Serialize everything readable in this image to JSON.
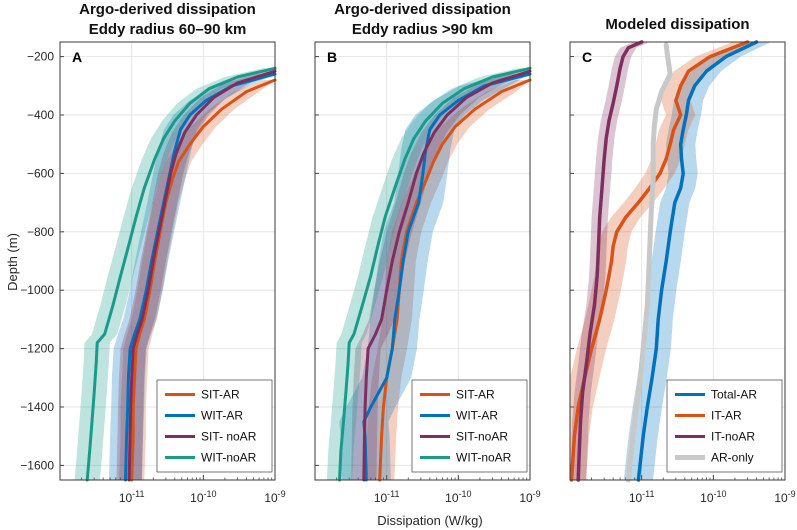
{
  "figure": {
    "ylabel": "Depth (m)",
    "xlabel": "Dissipation (W/kg)"
  },
  "chart_data": [
    {
      "type": "line",
      "panel": "A",
      "title": [
        "Argo-derived dissipation",
        "Eddy radius 60–90 km"
      ],
      "xscale": "log",
      "xlim": [
        1e-12,
        1e-09
      ],
      "ylim": [
        -1650,
        -150
      ],
      "xticks": [
        "10^-11",
        "10^-10",
        "10^-9"
      ],
      "yticks": [
        -200,
        -400,
        -600,
        -800,
        -1000,
        -1200,
        -1400,
        -1600
      ],
      "legend_position": "bottom-right",
      "series": [
        {
          "name": "SIT-AR",
          "color": "#D95319",
          "shade": 0.05,
          "depth": [
            -280,
            -320,
            -380,
            -440,
            -500,
            -560,
            -620,
            -700,
            -800,
            -900,
            -1000,
            -1100,
            -1150,
            -1200,
            -1300,
            -1400,
            -1500,
            -1650
          ],
          "x": [
            1e-09,
            4e-10,
            1.8e-10,
            1e-10,
            6.5e-11,
            4.5e-11,
            3.7e-11,
            3e-11,
            2.5e-11,
            2.1e-11,
            1.8e-11,
            1.5e-11,
            1.3e-11,
            1.15e-11,
            1.1e-11,
            1.05e-11,
            1.05e-11,
            1e-11
          ]
        },
        {
          "name": "WIT-AR",
          "color": "#0072BD",
          "shade": 0.07,
          "depth": [
            -260,
            -300,
            -350,
            -400,
            -450,
            -520,
            -600,
            -700,
            -800,
            -900,
            -1000,
            -1100,
            -1150,
            -1200,
            -1300,
            -1400,
            -1500,
            -1650
          ],
          "x": [
            1e-09,
            2.5e-10,
            1.1e-10,
            6.5e-11,
            4.8e-11,
            4e-11,
            3.4e-11,
            2.8e-11,
            2.3e-11,
            1.9e-11,
            1.6e-11,
            1.3e-11,
            1.1e-11,
            9.5e-12,
            9e-12,
            8.8e-12,
            8.5e-12,
            8.2e-12
          ]
        },
        {
          "name": "SIT- noAR",
          "color": "#7E2F5E",
          "shade": 0.05,
          "depth": [
            -250,
            -290,
            -340,
            -400,
            -460,
            -530,
            -600,
            -700,
            -800,
            -900,
            -1000,
            -1100,
            -1150,
            -1200,
            -1300,
            -1400,
            -1500,
            -1650
          ],
          "x": [
            1e-09,
            3e-10,
            1.4e-10,
            8e-11,
            5.5e-11,
            4.2e-11,
            3.5e-11,
            2.9e-11,
            2.4e-11,
            2e-11,
            1.7e-11,
            1.4e-11,
            1.2e-11,
            1.05e-11,
            1e-11,
            9.7e-12,
            9.5e-12,
            9.2e-12
          ]
        },
        {
          "name": "WIT-noAR",
          "color": "#1A9A8A",
          "shade": 0.05,
          "depth": [
            -240,
            -270,
            -310,
            -360,
            -420,
            -480,
            -550,
            -650,
            -750,
            -850,
            -950,
            -1050,
            -1150,
            -1180,
            -1250,
            -1350,
            -1450,
            -1550,
            -1650
          ],
          "x": [
            1e-09,
            3e-10,
            1.2e-10,
            6.5e-11,
            4e-11,
            2.8e-11,
            2.1e-11,
            1.5e-11,
            1.15e-11,
            9e-12,
            7e-12,
            5.5e-12,
            4.2e-12,
            3.3e-12,
            3.2e-12,
            3e-12,
            2.8e-12,
            2.6e-12,
            2.4e-12
          ]
        }
      ]
    },
    {
      "type": "line",
      "panel": "B",
      "title": [
        "Argo-derived dissipation",
        "Eddy radius >90 km"
      ],
      "xscale": "log",
      "xlim": [
        1e-12,
        1e-09
      ],
      "ylim": [
        -1650,
        -150
      ],
      "xticks": [
        "10^-11",
        "10^-10",
        "10^-9"
      ],
      "yticks": [
        -200,
        -400,
        -600,
        -800,
        -1000,
        -1200,
        -1400,
        -1600
      ],
      "legend_position": "bottom-right",
      "series": [
        {
          "name": "SIT-AR",
          "color": "#D95319",
          "shade": 0.06,
          "depth": [
            -280,
            -320,
            -380,
            -440,
            -500,
            -560,
            -620,
            -700,
            -800,
            -900,
            -1000,
            -1100,
            -1200,
            -1300,
            -1400,
            -1500,
            -1650
          ],
          "x": [
            1e-09,
            4e-10,
            1.7e-10,
            9e-11,
            6e-11,
            4.5e-11,
            3.6e-11,
            2.6e-11,
            1.9e-11,
            1.6e-11,
            1.5e-11,
            1.4e-11,
            1.2e-11,
            1e-11,
            9e-12,
            8.5e-12,
            8e-12
          ]
        },
        {
          "name": "WIT-AR",
          "color": "#0072BD",
          "shade": 0.12,
          "depth": [
            -260,
            -300,
            -350,
            -400,
            -450,
            -520,
            -600,
            -700,
            -800,
            -900,
            -1000,
            -1100,
            -1200,
            -1300,
            -1400,
            -1450,
            -1500,
            -1650
          ],
          "x": [
            1e-09,
            2.3e-10,
            1e-10,
            5.5e-11,
            4e-11,
            3.5e-11,
            3.2e-11,
            2.8e-11,
            2e-11,
            1.7e-11,
            1.5e-11,
            1.3e-11,
            1.2e-11,
            1e-11,
            6e-12,
            4.8e-12,
            5e-12,
            5.2e-12
          ]
        },
        {
          "name": "SIT-noAR",
          "color": "#7E2F5E",
          "shade": 0.05,
          "depth": [
            -250,
            -290,
            -340,
            -400,
            -460,
            -530,
            -600,
            -700,
            -800,
            -900,
            -1000,
            -1100,
            -1150,
            -1200,
            -1300,
            -1400,
            -1500,
            -1650
          ],
          "x": [
            1e-09,
            3e-10,
            1.3e-10,
            7e-11,
            4.6e-11,
            3.3e-11,
            2.6e-11,
            2e-11,
            1.5e-11,
            1.2e-11,
            1e-11,
            8.5e-12,
            7e-12,
            5.5e-12,
            5.2e-12,
            5e-12,
            4.9e-12,
            4.8e-12
          ]
        },
        {
          "name": "WIT-noAR",
          "color": "#1A9A8A",
          "shade": 0.05,
          "depth": [
            -240,
            -270,
            -310,
            -360,
            -420,
            -480,
            -550,
            -650,
            -750,
            -850,
            -950,
            -1050,
            -1150,
            -1180,
            -1250,
            -1350,
            -1450,
            -1550,
            -1650
          ],
          "x": [
            1e-09,
            3e-10,
            1.2e-10,
            6e-11,
            3.5e-11,
            2.4e-11,
            1.8e-11,
            1.3e-11,
            9.5e-12,
            7.5e-12,
            6e-12,
            4.6e-12,
            3.5e-12,
            3e-12,
            2.9e-12,
            2.7e-12,
            2.5e-12,
            2.3e-12,
            2.2e-12
          ]
        }
      ]
    },
    {
      "type": "line",
      "panel": "C",
      "title": [
        "Modeled dissipation"
      ],
      "xscale": "log",
      "xlim": [
        1e-12,
        1e-09
      ],
      "ylim": [
        -1650,
        -150
      ],
      "xticks": [
        "10^-11",
        "10^-10",
        "10^-9"
      ],
      "yticks": [
        -200,
        -400,
        -600,
        -800,
        -1000,
        -1200,
        -1400,
        -1600
      ],
      "legend_position": "bottom-right",
      "series": [
        {
          "name": "Total-AR",
          "color": "#0072BD",
          "shade": 0.06,
          "depth": [
            -150,
            -200,
            -250,
            -300,
            -350,
            -400,
            -450,
            -500,
            -550,
            -600,
            -650,
            -700,
            -800,
            -900,
            -1000,
            -1100,
            -1200,
            -1300,
            -1400,
            -1500,
            -1650
          ],
          "x": [
            4e-10,
            1.5e-10,
            8e-11,
            5.5e-11,
            4.5e-11,
            4.2e-11,
            3.8e-11,
            3.5e-11,
            3.6e-11,
            3.8e-11,
            3.5e-11,
            2.9e-11,
            2.5e-11,
            2.2e-11,
            1.9e-11,
            1.7e-11,
            1.6e-11,
            1.4e-11,
            1.2e-11,
            1.05e-11,
            9e-12
          ]
        },
        {
          "name": "IT-AR",
          "color": "#D95319",
          "shade": 0.06,
          "depth": [
            -150,
            -200,
            -250,
            -300,
            -350,
            -400,
            -450,
            -500,
            -550,
            -600,
            -650,
            -700,
            -750,
            -800,
            -850,
            -900,
            -950,
            -1000,
            -1100,
            -1200,
            -1300,
            -1400,
            -1500,
            -1650
          ],
          "x": [
            3e-10,
            9e-11,
            4.5e-11,
            3.5e-11,
            3e-11,
            3.5e-11,
            2.8e-11,
            2.5e-11,
            2.2e-11,
            1.8e-11,
            1.3e-11,
            9e-12,
            6e-12,
            4.5e-12,
            4e-12,
            3.8e-12,
            3.5e-12,
            3.2e-12,
            2.6e-12,
            2e-12,
            1.6e-12,
            1.3e-12,
            1.15e-12,
            1.05e-12
          ]
        },
        {
          "name": "IT-noAR",
          "color": "#7E2F5E",
          "shade": 0.03,
          "depth": [
            -150,
            -170,
            -200,
            -240,
            -300,
            -360,
            -420,
            -480,
            -550,
            -650,
            -750,
            -850,
            -950,
            -1050,
            -1150,
            -1250,
            -1350,
            -1450,
            -1550,
            -1650
          ],
          "x": [
            1e-11,
            6.5e-12,
            5.5e-12,
            5e-12,
            4.5e-12,
            4e-12,
            3.5e-12,
            3.2e-12,
            3e-12,
            2.8e-12,
            2.6e-12,
            2.5e-12,
            2.4e-12,
            2.2e-12,
            1.9e-12,
            1.7e-12,
            1.5e-12,
            1.4e-12,
            1.35e-12,
            1.3e-12
          ]
        },
        {
          "name": "AR-only",
          "color": "#C8C8C8",
          "shade": 0,
          "depth": [
            -160,
            -200,
            -260,
            -320,
            -380,
            -440,
            -500,
            -560,
            -620,
            -680,
            -750,
            -850,
            -950,
            -1050,
            -1150,
            -1250,
            -1350,
            -1450,
            -1550,
            -1650
          ],
          "x": [
            2.2e-11,
            2.3e-11,
            2.5e-11,
            1.9e-11,
            1.6e-11,
            1.5e-11,
            1.45e-11,
            1.45e-11,
            1.45e-11,
            1.4e-11,
            1.35e-11,
            1.3e-11,
            1.25e-11,
            1.2e-11,
            1.1e-11,
            1e-11,
            9e-12,
            8e-12,
            7.2e-12,
            6.5e-12
          ]
        }
      ]
    }
  ]
}
